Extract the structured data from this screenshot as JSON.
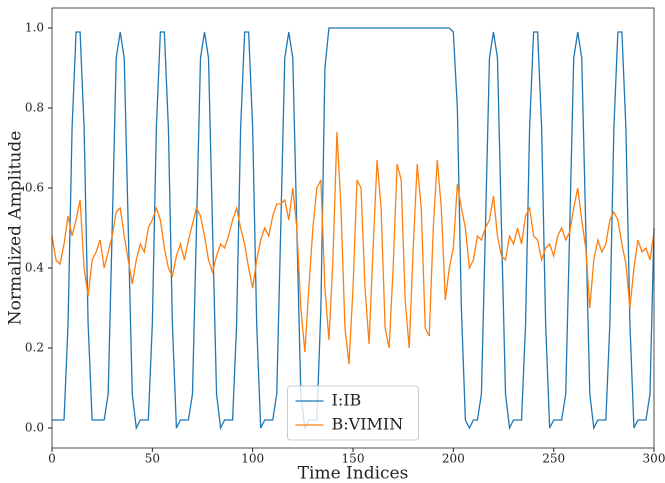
{
  "chart_data": {
    "type": "line",
    "xlabel": "Time Indices",
    "ylabel": "Normalized Amplitude",
    "xlim": [
      0,
      300
    ],
    "ylim": [
      -0.05,
      1.05
    ],
    "xticks": [
      0,
      50,
      100,
      150,
      200,
      250,
      300
    ],
    "yticks": [
      {
        "value": 0,
        "label": "0.0"
      },
      0.2,
      0.4,
      0.6,
      0.8,
      {
        "value": 1,
        "label": "1.0"
      }
    ],
    "grid": false,
    "legend": "lower center",
    "x": [
      0,
      2,
      4,
      6,
      8,
      10,
      12,
      14,
      16,
      18,
      20,
      22,
      24,
      26,
      28,
      30,
      32,
      34,
      36,
      38,
      40,
      42,
      44,
      46,
      48,
      50,
      52,
      54,
      56,
      58,
      60,
      62,
      64,
      66,
      68,
      70,
      72,
      74,
      76,
      78,
      80,
      82,
      84,
      86,
      88,
      90,
      92,
      94,
      96,
      98,
      100,
      102,
      104,
      106,
      108,
      110,
      112,
      114,
      116,
      118,
      120,
      122,
      124,
      126,
      128,
      130,
      132,
      134,
      136,
      138,
      140,
      142,
      144,
      146,
      148,
      150,
      152,
      154,
      156,
      158,
      160,
      162,
      164,
      166,
      168,
      170,
      172,
      174,
      176,
      178,
      180,
      182,
      184,
      186,
      188,
      190,
      192,
      194,
      196,
      198,
      200,
      202,
      204,
      206,
      208,
      210,
      212,
      214,
      216,
      218,
      220,
      222,
      224,
      226,
      228,
      230,
      232,
      234,
      236,
      238,
      240,
      242,
      244,
      246,
      248,
      250,
      252,
      254,
      256,
      258,
      260,
      262,
      264,
      266,
      268,
      270,
      272,
      274,
      276,
      278,
      280,
      282,
      284,
      286,
      288,
      290,
      292,
      294,
      296,
      298,
      300
    ],
    "series": [
      {
        "name": "I:IB",
        "color": "#1f77b4",
        "values": [
          0.02,
          0.02,
          0.02,
          0.02,
          0.26,
          0.75,
          0.99,
          0.99,
          0.75,
          0.26,
          0.02,
          0.02,
          0.02,
          0.02,
          0.085,
          0.5,
          0.925,
          0.99,
          0.925,
          0.5,
          0.085,
          0.0,
          0.02,
          0.02,
          0.02,
          0.26,
          0.75,
          0.99,
          0.99,
          0.75,
          0.26,
          0.0,
          0.02,
          0.02,
          0.02,
          0.085,
          0.5,
          0.925,
          0.99,
          0.925,
          0.5,
          0.085,
          0.0,
          0.02,
          0.02,
          0.02,
          0.26,
          0.75,
          0.99,
          0.99,
          0.75,
          0.26,
          0.0,
          0.02,
          0.02,
          0.02,
          0.085,
          0.5,
          0.925,
          0.99,
          0.925,
          0.5,
          0.085,
          0.0,
          0.02,
          0.02,
          0.02,
          0.3,
          0.9,
          1.0,
          1.0,
          1.0,
          1.0,
          1.0,
          1.0,
          1.0,
          1.0,
          1.0,
          1.0,
          1.0,
          1.0,
          1.0,
          1.0,
          1.0,
          1.0,
          1.0,
          1.0,
          1.0,
          1.0,
          1.0,
          1.0,
          1.0,
          1.0,
          1.0,
          1.0,
          1.0,
          1.0,
          1.0,
          1.0,
          1.0,
          0.99,
          0.8,
          0.3,
          0.02,
          0.0,
          0.02,
          0.02,
          0.085,
          0.5,
          0.925,
          0.99,
          0.925,
          0.5,
          0.085,
          0.0,
          0.02,
          0.02,
          0.02,
          0.26,
          0.75,
          0.99,
          0.99,
          0.75,
          0.26,
          0.0,
          0.02,
          0.02,
          0.02,
          0.085,
          0.5,
          0.925,
          0.99,
          0.925,
          0.5,
          0.085,
          0.0,
          0.02,
          0.02,
          0.02,
          0.26,
          0.75,
          0.99,
          0.99,
          0.75,
          0.26,
          0.0,
          0.02,
          0.02,
          0.02,
          0.085,
          0.5
        ]
      },
      {
        "name": "B:VIMIN",
        "color": "#ff7f0e",
        "values": [
          0.48,
          0.42,
          0.41,
          0.46,
          0.53,
          0.48,
          0.52,
          0.57,
          0.4,
          0.33,
          0.42,
          0.44,
          0.47,
          0.4,
          0.44,
          0.48,
          0.54,
          0.55,
          0.48,
          0.42,
          0.36,
          0.42,
          0.46,
          0.44,
          0.5,
          0.52,
          0.55,
          0.52,
          0.45,
          0.4,
          0.38,
          0.43,
          0.46,
          0.42,
          0.47,
          0.51,
          0.55,
          0.53,
          0.48,
          0.42,
          0.39,
          0.43,
          0.46,
          0.45,
          0.48,
          0.52,
          0.55,
          0.5,
          0.46,
          0.4,
          0.35,
          0.42,
          0.47,
          0.5,
          0.48,
          0.53,
          0.56,
          0.56,
          0.57,
          0.52,
          0.6,
          0.5,
          0.3,
          0.19,
          0.35,
          0.5,
          0.6,
          0.62,
          0.35,
          0.22,
          0.42,
          0.74,
          0.55,
          0.25,
          0.16,
          0.35,
          0.62,
          0.6,
          0.35,
          0.21,
          0.45,
          0.67,
          0.55,
          0.25,
          0.2,
          0.4,
          0.66,
          0.62,
          0.32,
          0.2,
          0.45,
          0.66,
          0.55,
          0.25,
          0.23,
          0.5,
          0.67,
          0.55,
          0.32,
          0.4,
          0.45,
          0.61,
          0.55,
          0.5,
          0.4,
          0.42,
          0.48,
          0.47,
          0.5,
          0.52,
          0.58,
          0.48,
          0.43,
          0.42,
          0.48,
          0.46,
          0.5,
          0.46,
          0.53,
          0.55,
          0.48,
          0.47,
          0.42,
          0.45,
          0.46,
          0.43,
          0.48,
          0.5,
          0.47,
          0.49,
          0.55,
          0.6,
          0.52,
          0.45,
          0.3,
          0.42,
          0.47,
          0.44,
          0.46,
          0.52,
          0.54,
          0.52,
          0.46,
          0.41,
          0.3,
          0.4,
          0.47,
          0.44,
          0.45,
          0.42,
          0.49
        ]
      }
    ]
  }
}
